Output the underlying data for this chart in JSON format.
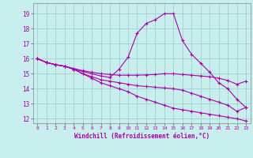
{
  "xlabel": "Windchill (Refroidissement éolien,°C)",
  "background_color": "#c8eeed",
  "line_color": "#aa00aa",
  "grid_color": "#99cccc",
  "xlim": [
    -0.5,
    23.5
  ],
  "ylim": [
    11.7,
    19.7
  ],
  "xticks": [
    0,
    1,
    2,
    3,
    4,
    5,
    6,
    7,
    8,
    9,
    10,
    11,
    12,
    13,
    14,
    15,
    16,
    17,
    18,
    19,
    20,
    21,
    22,
    23
  ],
  "yticks": [
    12,
    13,
    14,
    15,
    16,
    17,
    18,
    19
  ],
  "lines": [
    [
      16.0,
      15.75,
      15.6,
      15.5,
      15.3,
      15.15,
      15.0,
      14.85,
      14.75,
      15.3,
      16.1,
      17.7,
      18.35,
      18.6,
      19.0,
      19.0,
      17.2,
      16.3,
      15.7,
      15.1,
      14.4,
      14.0,
      13.3,
      12.75
    ],
    [
      16.0,
      15.75,
      15.6,
      15.5,
      15.35,
      15.2,
      15.1,
      15.0,
      14.95,
      14.9,
      14.9,
      14.9,
      14.92,
      14.95,
      15.0,
      15.0,
      14.95,
      14.9,
      14.85,
      14.8,
      14.7,
      14.55,
      14.3,
      14.5
    ],
    [
      16.0,
      15.75,
      15.6,
      15.5,
      15.3,
      15.0,
      14.8,
      14.6,
      14.5,
      14.4,
      14.3,
      14.2,
      14.15,
      14.1,
      14.05,
      14.0,
      13.9,
      13.7,
      13.5,
      13.3,
      13.1,
      12.9,
      12.5,
      12.75
    ],
    [
      16.0,
      15.75,
      15.6,
      15.5,
      15.3,
      15.0,
      14.7,
      14.4,
      14.2,
      14.0,
      13.8,
      13.5,
      13.3,
      13.1,
      12.9,
      12.7,
      12.6,
      12.5,
      12.4,
      12.3,
      12.2,
      12.1,
      12.0,
      11.85
    ]
  ]
}
